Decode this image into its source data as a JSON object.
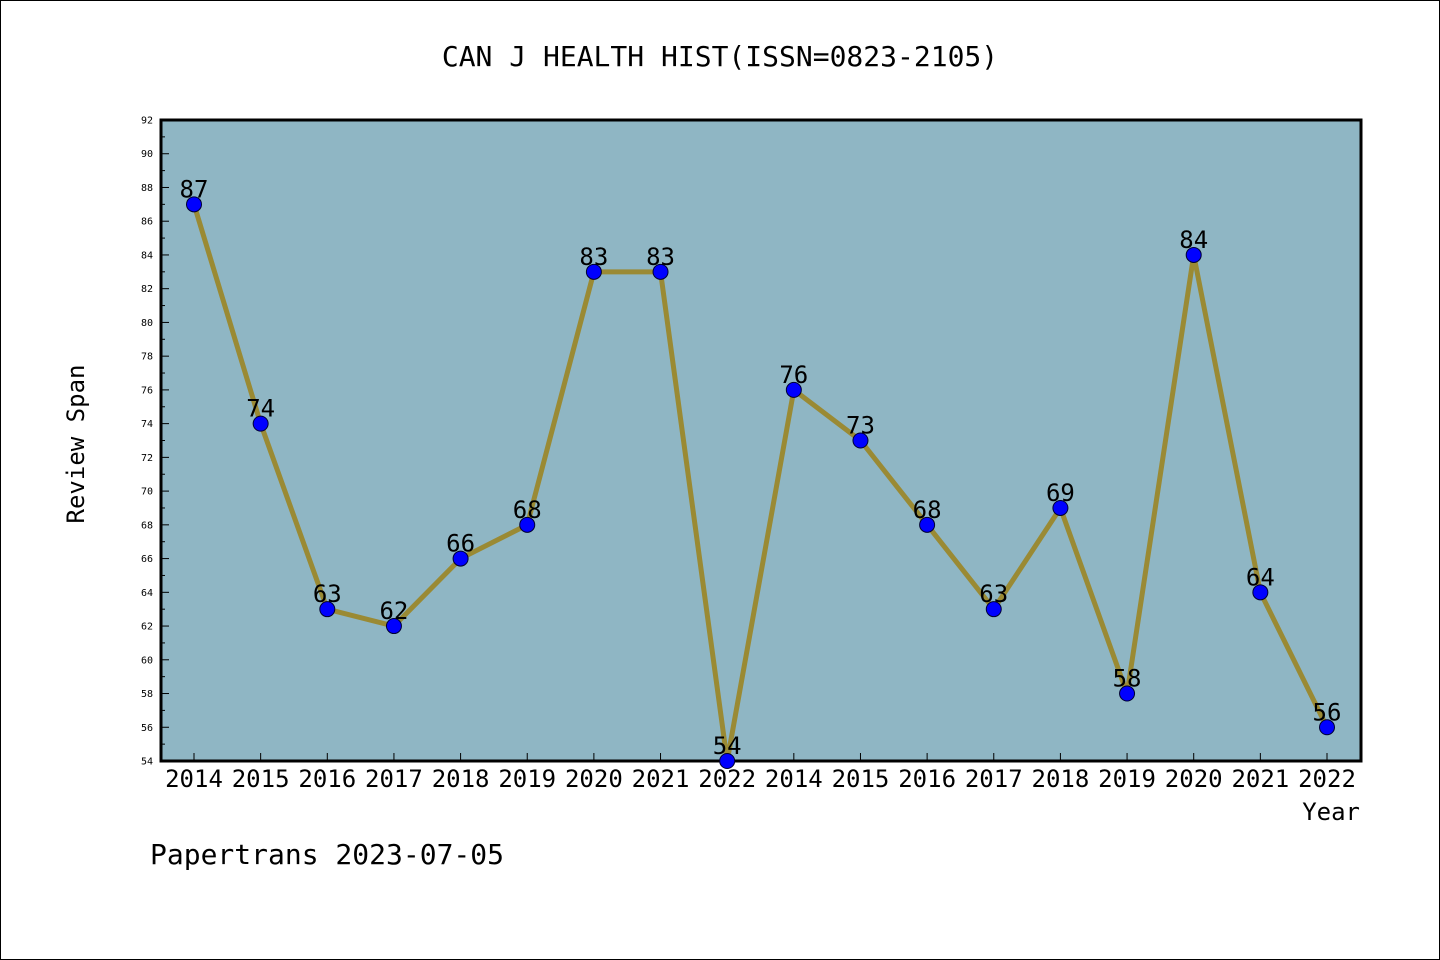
{
  "chart_data": {
    "type": "line",
    "title": "CAN J HEALTH HIST(ISSN=0823-2105)",
    "xlabel": "Year",
    "ylabel": "Review Span",
    "categories": [
      "2014",
      "2015",
      "2016",
      "2017",
      "2018",
      "2019",
      "2020",
      "2021",
      "2022",
      "2014",
      "2015",
      "2016",
      "2017",
      "2018",
      "2019",
      "2020",
      "2021",
      "2022"
    ],
    "series": [
      {
        "values": [
          87,
          74,
          63,
          62,
          66,
          68,
          83,
          83,
          54,
          76,
          73,
          68,
          63,
          69,
          58,
          84,
          64,
          56
        ]
      }
    ],
    "ylim": [
      54,
      92
    ],
    "yticks": [
      "54",
      "56",
      "58",
      "60",
      "62",
      "64",
      "66",
      "68",
      "70",
      "72",
      "74",
      "76",
      "78",
      "80",
      "82",
      "84",
      "86",
      "88",
      "90",
      "92"
    ],
    "grid": false,
    "colors": {
      "plot_background": "#8fb6c4",
      "line": "#9a8a34",
      "marker": "#0000ff"
    }
  },
  "footer": {
    "text": "Papertrans 2023-07-05"
  }
}
